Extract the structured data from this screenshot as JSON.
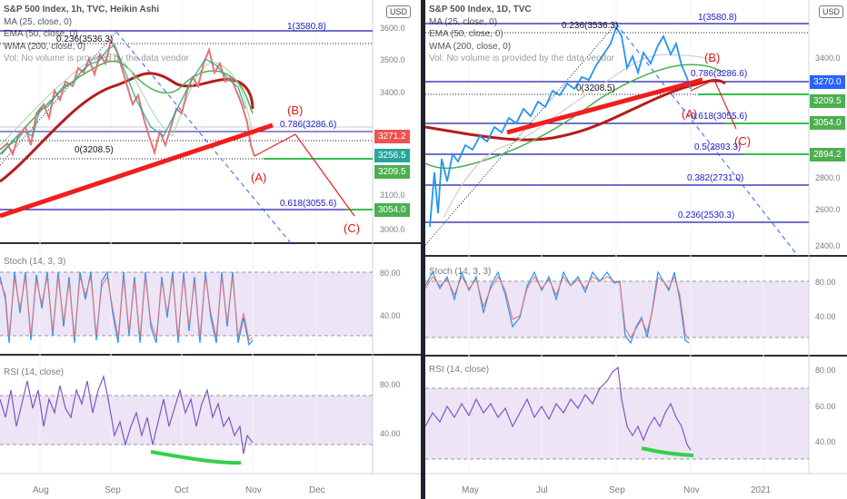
{
  "left": {
    "title": "S&P 500 Index, 1h, TVC, Heikin Ashi",
    "indicators": [
      "MA (25, close, 0)",
      "EMA (50, close, 0)",
      "WMA (200, close, 0)",
      "Vol: No volume is provided by the data vendor"
    ],
    "currency": "USD",
    "fib_labels": [
      "1(3580.8)",
      "0.236(3536.3)",
      "0.786(3286.6)",
      "0(3208.5)",
      "0.618(3055.6)"
    ],
    "wave_labels": [
      "(A)",
      "(B)",
      "(C)"
    ],
    "price_ticks": [
      "3600.0",
      "3500.0",
      "3400.0",
      "3100.0",
      "3000.0"
    ],
    "badges": [
      {
        "text": "3271.2",
        "color": "#ef5350"
      },
      {
        "text": "3256.5",
        "color": "#26a69a"
      },
      {
        "text": "3209.5",
        "color": "#4caf50"
      },
      {
        "text": "3054.0",
        "color": "#4caf50"
      }
    ],
    "stoch_label": "Stoch (14, 3, 3)",
    "stoch_ticks": [
      "80.00",
      "40.00"
    ],
    "rsi_label": "RSI (14, close)",
    "rsi_ticks": [
      "80.00",
      "40.00"
    ],
    "x_ticks": [
      "Aug",
      "Sep",
      "Oct",
      "Nov",
      "Dec"
    ]
  },
  "right": {
    "title": "S&P 500 Index, 1D, TVC",
    "indicators": [
      "MA (25, close, 0)",
      "EMA (50, close, 0)",
      "WMA (200, close, 0)",
      "Vol: No volume is provided by the data vendor"
    ],
    "currency": "USD",
    "fib_labels": [
      "1(3580.8)",
      "0.236(3536.3)",
      "0.786(3286.6)",
      "0(3208.5)",
      "0.618(3055.6)",
      "0.5(2893.3)",
      "0.382(2731.0)",
      "0.236(2530.3)"
    ],
    "wave_labels": [
      "(A)",
      "(B)",
      "(C)"
    ],
    "price_ticks": [
      "3400.0",
      "2800.0",
      "2600.0",
      "2400.0"
    ],
    "badges": [
      {
        "text": "3270.0",
        "color": "#2962ff"
      },
      {
        "text": "3209.5",
        "color": "#4caf50"
      },
      {
        "text": "3054.0",
        "color": "#4caf50"
      },
      {
        "text": "2894.2",
        "color": "#4caf50"
      }
    ],
    "stoch_label": "Stoch (14, 3, 3)",
    "stoch_ticks": [
      "80.00",
      "40.00"
    ],
    "rsi_label": "RSI (14, close)",
    "rsi_ticks": [
      "80.00",
      "60.00",
      "40.00"
    ],
    "x_ticks": [
      "May",
      "Jul",
      "Sep",
      "Nov",
      "2021"
    ]
  }
}
